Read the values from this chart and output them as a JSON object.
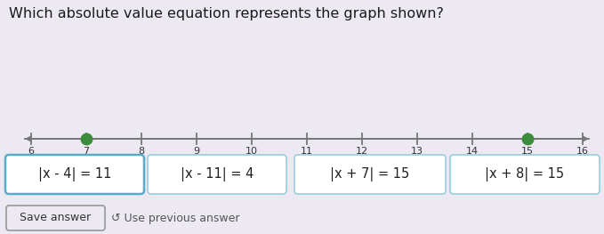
{
  "title": "Which absolute value equation represents the graph shown?",
  "bg_color": "#ede9f2",
  "number_line": {
    "ticks": [
      6,
      7,
      8,
      9,
      10,
      11,
      12,
      13,
      14,
      15,
      16
    ],
    "dots": [
      7,
      15
    ],
    "dot_color": "#3d8c3d",
    "line_color": "#777777"
  },
  "options": [
    "|x - 4| = 11",
    "|x - 11| = 4",
    "|x + 7| = 15",
    "|x + 8| = 15"
  ],
  "option_selected": 0,
  "box_border_selected": "#5aaacc",
  "box_border_normal": "#99ccdd",
  "box_bg": "#ffffff",
  "save_button_text": "Save answer",
  "prev_answer_text": "↺ Use previous answer",
  "title_fontsize": 11.5,
  "option_fontsize": 10.5,
  "save_fontsize": 9,
  "tick_fontsize": 8
}
